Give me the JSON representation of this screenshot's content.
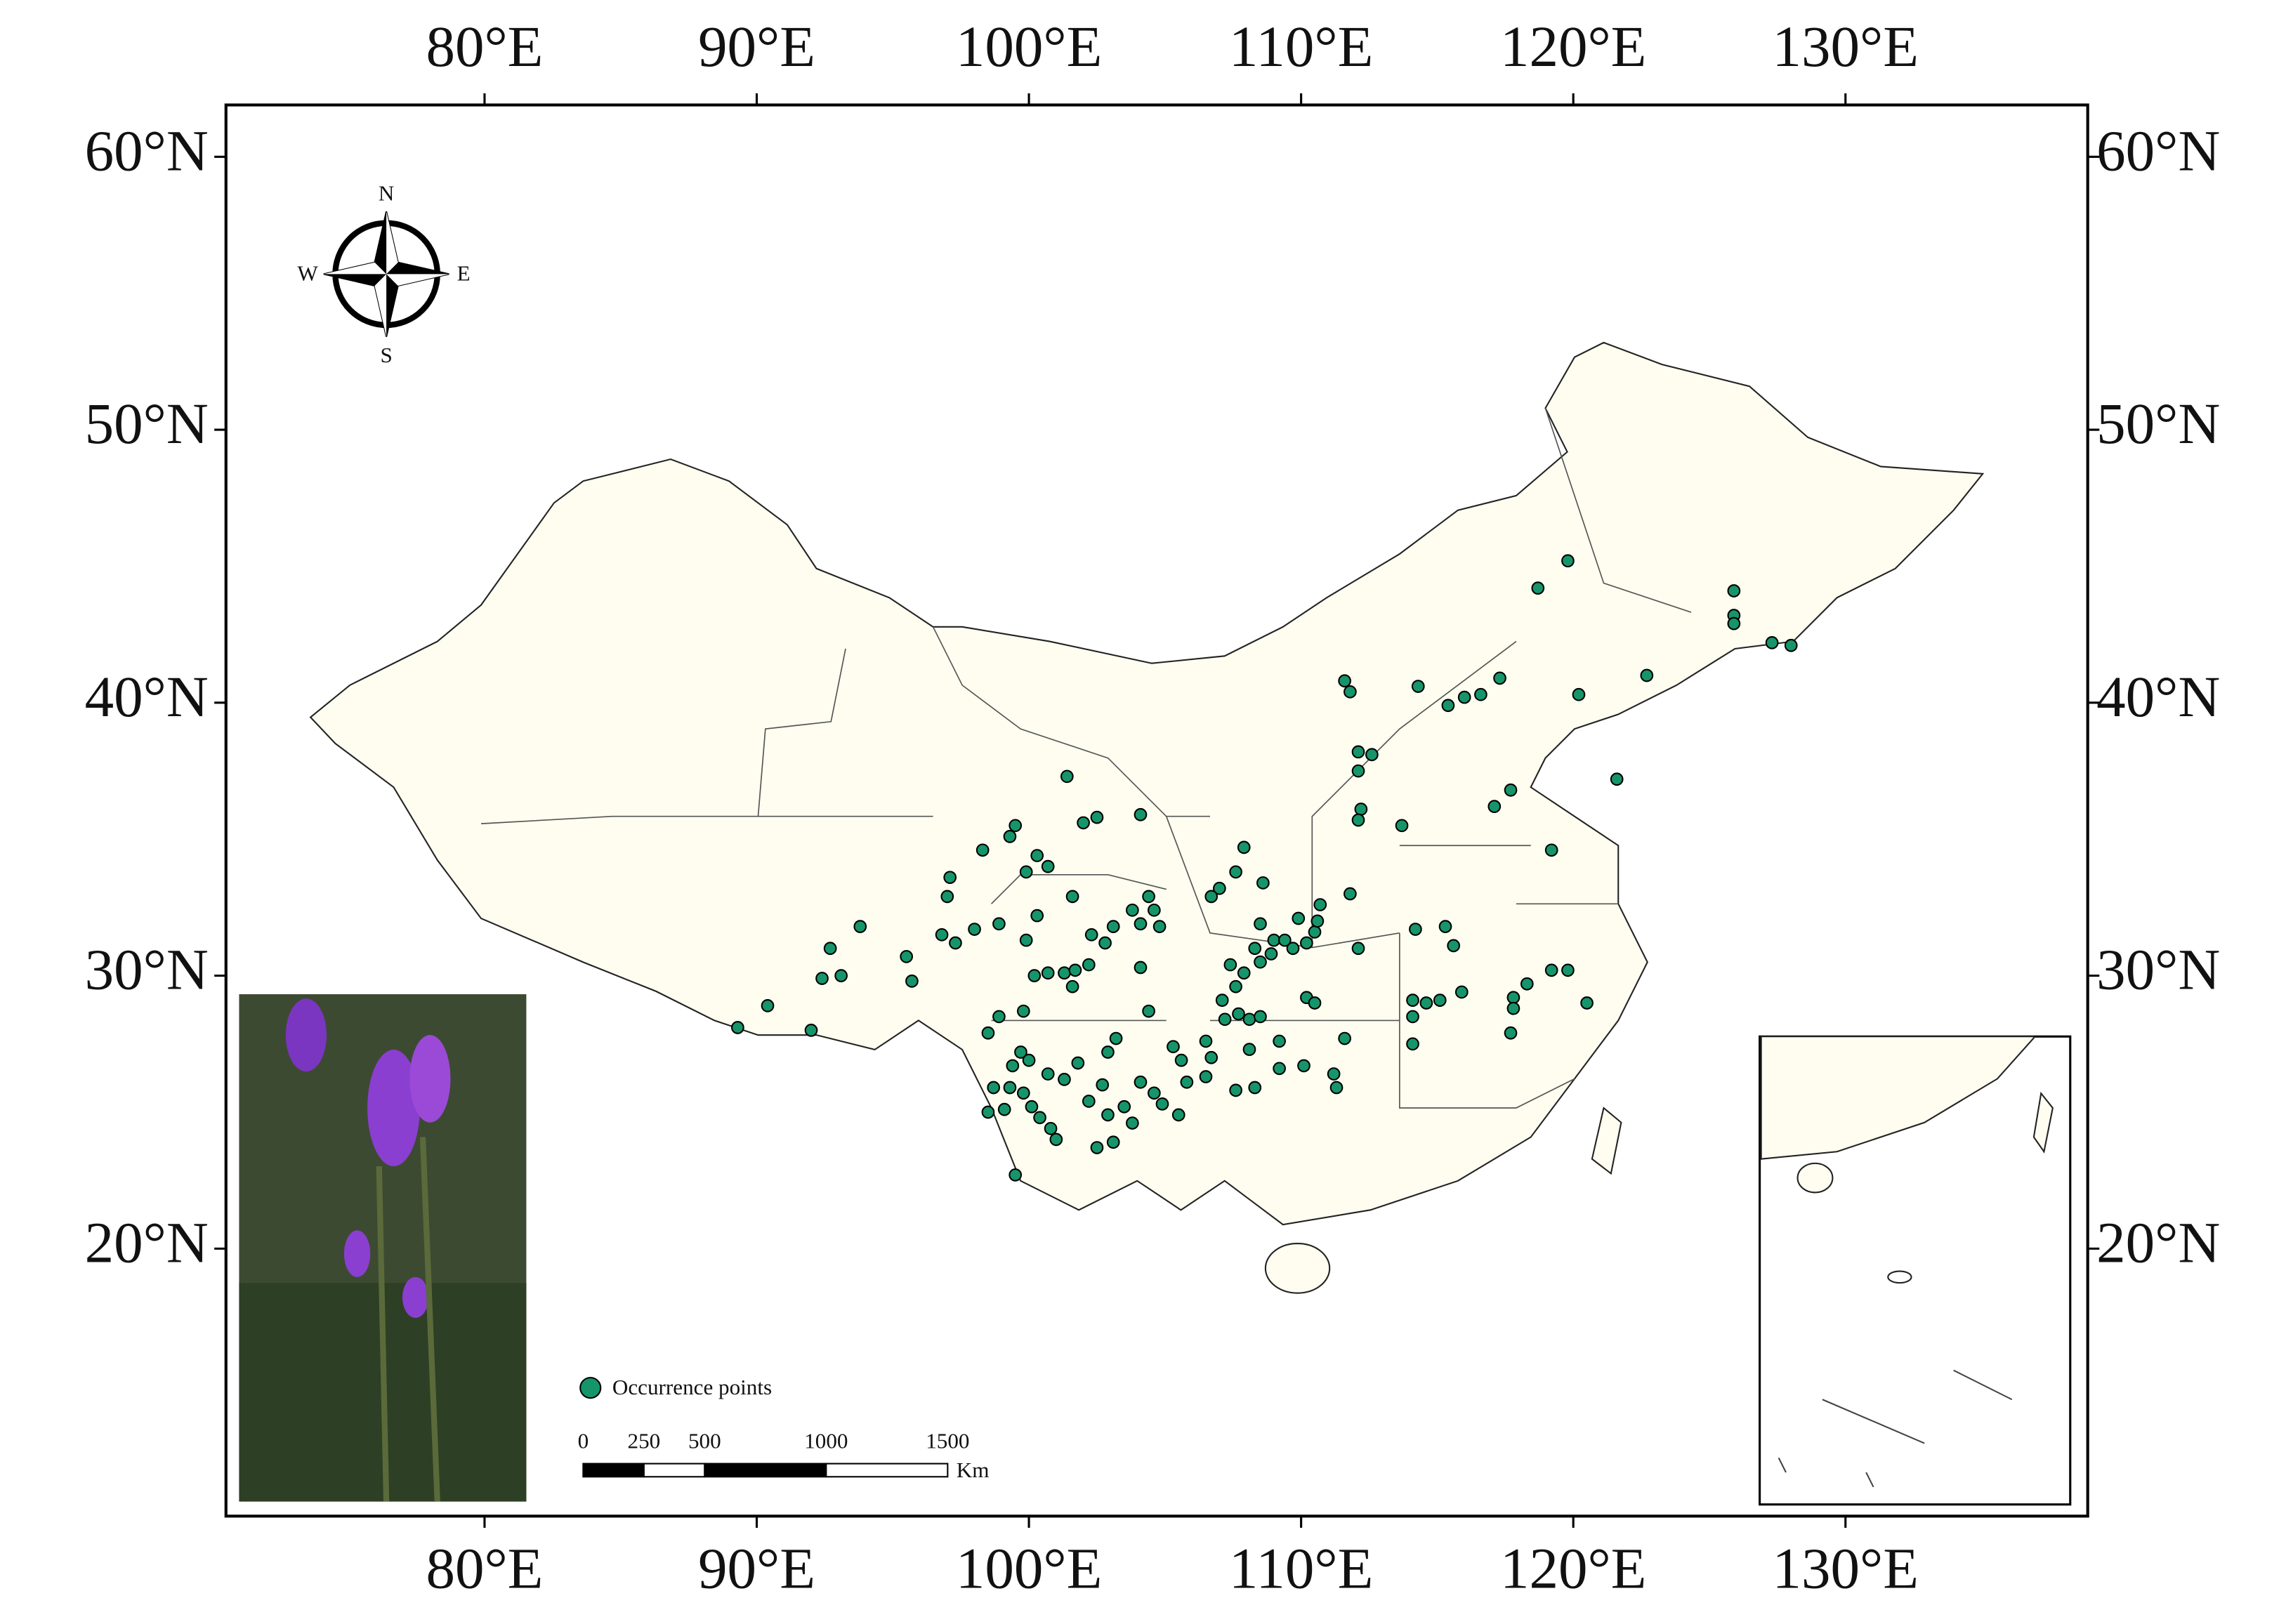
{
  "chart_data": {
    "type": "map",
    "xlim": [
      70.5,
      138.9
    ],
    "ylim": [
      10.2,
      61.9
    ],
    "xticks": [
      {
        "value": 80,
        "label": "80°E"
      },
      {
        "value": 90,
        "label": "90°E"
      },
      {
        "value": 100,
        "label": "100°E"
      },
      {
        "value": 110,
        "label": "110°E"
      },
      {
        "value": 120,
        "label": "120°E"
      },
      {
        "value": 130,
        "label": "130°E"
      }
    ],
    "yticks": [
      {
        "value": 20,
        "label": "20°N"
      },
      {
        "value": 30,
        "label": "30°N"
      },
      {
        "value": 40,
        "label": "40°N"
      },
      {
        "value": 50,
        "label": "50°N"
      },
      {
        "value": 60,
        "label": "60°N"
      }
    ],
    "series": [
      {
        "name": "Occurrence points",
        "color": "#16956a",
        "x": [
          89.3,
          90.4,
          92.0,
          92.7,
          92.4,
          93.1,
          93.8,
          95.5,
          95.7,
          96.8,
          97.1,
          97.0,
          97.3,
          98.0,
          98.3,
          98.9,
          99.3,
          99.5,
          99.9,
          100.3,
          100.7,
          99.9,
          100.3,
          100.2,
          100.7,
          101.4,
          102.0,
          102.5,
          104.1,
          101.6,
          102.3,
          103.1,
          104.1,
          103.8,
          104.4,
          104.6,
          104.8,
          101.3,
          101.7,
          102.2,
          102.8,
          101.6,
          104.1,
          104.4,
          98.5,
          98.9,
          99.8,
          99.7,
          100.0,
          99.4,
          98.7,
          99.3,
          98.5,
          99.1,
          99.8,
          100.1,
          100.4,
          100.8,
          101.0,
          100.7,
          101.3,
          101.8,
          102.2,
          102.7,
          102.9,
          103.2,
          102.9,
          103.5,
          103.8,
          102.5,
          103.1,
          104.1,
          104.6,
          99.5,
          105.3,
          105.6,
          104.9,
          105.5,
          105.8,
          106.5,
          106.7,
          106.5,
          107.2,
          107.1,
          107.6,
          107.4,
          107.9,
          108.3,
          108.5,
          108.9,
          109.0,
          109.4,
          109.7,
          110.2,
          110.5,
          110.6,
          110.7,
          109.9,
          108.5,
          108.6,
          107.6,
          107.9,
          107.0,
          106.7,
          107.7,
          108.1,
          108.5,
          108.1,
          107.6,
          108.3,
          109.2,
          109.2,
          110.2,
          110.5,
          110.1,
          111.2,
          111.3,
          111.6,
          111.8,
          112.1,
          111.6,
          111.8,
          112.1,
          112.6,
          112.1,
          112.2,
          112.1,
          113.7,
          114.3,
          115.4,
          116.0,
          116.6,
          117.3,
          117.7,
          117.1,
          119.2,
          121.6,
          120.2,
          122.7,
          118.7,
          119.8,
          125.9,
          125.9,
          125.9,
          127.3,
          128.0,
          114.2,
          115.3,
          115.6,
          114.1,
          114.6,
          115.1,
          115.9,
          114.1,
          114.1,
          117.8,
          117.8,
          117.7,
          118.3,
          119.2,
          119.8,
          120.5
        ],
        "values": [
          28.1,
          28.9,
          28.0,
          31.0,
          29.9,
          30.0,
          31.8,
          30.7,
          29.8,
          31.5,
          33.6,
          32.9,
          31.2,
          31.7,
          34.6,
          31.9,
          35.1,
          35.5,
          33.8,
          34.4,
          34.0,
          31.3,
          32.2,
          30.0,
          30.1,
          37.3,
          35.6,
          35.8,
          35.9,
          32.9,
          31.5,
          31.8,
          31.9,
          32.4,
          32.9,
          32.4,
          31.8,
          30.1,
          30.2,
          30.4,
          31.2,
          29.6,
          30.3,
          28.7,
          27.9,
          28.5,
          28.7,
          27.2,
          26.9,
          26.7,
          25.9,
          25.9,
          25.0,
          25.1,
          25.7,
          25.2,
          24.8,
          24.4,
          24.0,
          26.4,
          26.2,
          26.8,
          25.4,
          26.0,
          27.2,
          27.7,
          24.9,
          25.2,
          24.6,
          23.7,
          23.9,
          26.1,
          25.7,
          22.7,
          27.4,
          26.9,
          25.3,
          24.9,
          26.1,
          26.3,
          27.0,
          27.6,
          28.4,
          29.1,
          29.6,
          30.4,
          30.1,
          31.0,
          30.5,
          30.8,
          31.3,
          31.3,
          31.0,
          31.2,
          31.6,
          32.0,
          32.6,
          32.1,
          31.9,
          33.4,
          33.8,
          34.7,
          33.2,
          32.9,
          28.6,
          28.4,
          28.5,
          27.3,
          25.8,
          25.9,
          27.6,
          26.6,
          29.2,
          29.0,
          26.7,
          26.4,
          25.9,
          27.7,
          33.0,
          31.0,
          40.8,
          40.4,
          38.2,
          38.1,
          37.5,
          36.1,
          35.7,
          35.5,
          40.6,
          39.9,
          40.2,
          40.3,
          40.9,
          36.8,
          36.2,
          34.6,
          37.2,
          40.3,
          41.0,
          44.2,
          45.2,
          44.1,
          43.2,
          42.9,
          42.2,
          42.1,
          31.7,
          31.8,
          31.1,
          29.1,
          29.0,
          29.1,
          29.4,
          28.5,
          27.5,
          29.2,
          28.8,
          27.9,
          29.7,
          30.2,
          30.2,
          29.0
        ]
      }
    ],
    "scale_bar": {
      "ticks": [
        0,
        250,
        500,
        1000,
        1500
      ],
      "unit": "Km"
    },
    "compass": {
      "north": "N",
      "south": "S",
      "west": "W",
      "east": "E"
    }
  }
}
